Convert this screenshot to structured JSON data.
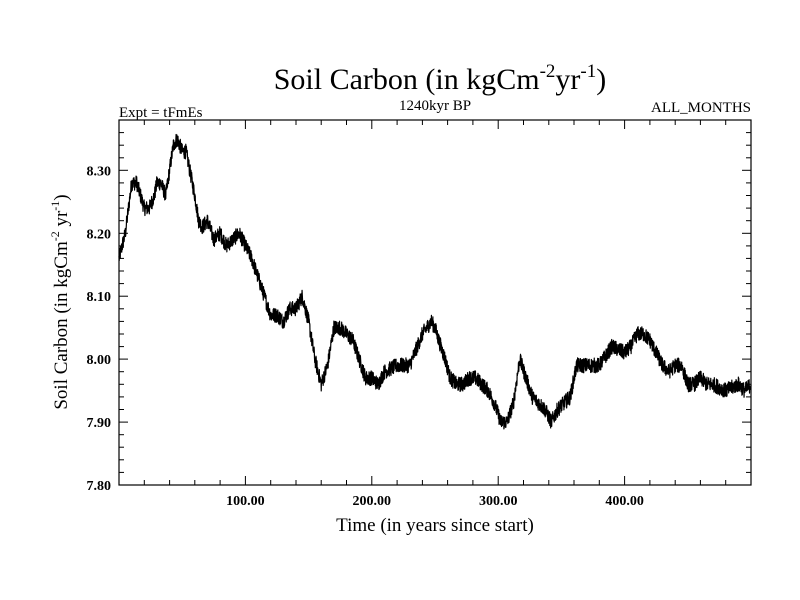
{
  "chart_data": {
    "type": "line",
    "title": "Soil Carbon (in kgCm",
    "title_sup1": "-2",
    "title_mid": "yr",
    "title_sup2": "-1",
    "title_end": ")",
    "left_label": "Expt = tFmEs",
    "center_label": "1240kyr BP",
    "right_label": "ALL_MONTHS",
    "xlabel": "Time (in years since start)",
    "ylabel": "Soil Carbon (in kgCm",
    "ylabel_sup1": "-2",
    "ylabel_mid": " yr",
    "ylabel_sup2": "-1",
    "ylabel_end": ")",
    "xlim": [
      0,
      500
    ],
    "ylim": [
      7.8,
      8.38
    ],
    "x_ticks": [
      100,
      200,
      300,
      400
    ],
    "x_tick_labels": [
      "100.00",
      "200.00",
      "300.00",
      "400.00"
    ],
    "y_ticks": [
      7.8,
      7.9,
      8.0,
      8.1,
      8.2,
      8.3
    ],
    "y_tick_labels": [
      "7.80",
      "7.90",
      "8.00",
      "8.10",
      "8.20",
      "8.30"
    ],
    "series": [
      {
        "name": "Soil Carbon",
        "color": "#000000",
        "noise_amplitude": 0.012,
        "x": [
          0,
          5,
          10,
          14,
          17,
          20,
          24,
          28,
          30,
          33,
          37,
          40,
          43,
          46,
          50,
          53,
          56,
          60,
          63,
          66,
          70,
          75,
          80,
          85,
          90,
          95,
          100,
          105,
          110,
          115,
          120,
          125,
          130,
          135,
          140,
          145,
          150,
          155,
          160,
          165,
          170,
          175,
          180,
          185,
          190,
          195,
          200,
          205,
          210,
          220,
          230,
          240,
          247,
          250,
          253,
          258,
          262,
          267,
          272,
          277,
          282,
          287,
          292,
          297,
          302,
          307,
          312,
          317,
          322,
          327,
          332,
          337,
          342,
          347,
          352,
          357,
          362,
          370,
          380,
          390,
          400,
          405,
          410,
          415,
          420,
          425,
          430,
          435,
          440,
          445,
          450,
          455,
          460,
          465,
          470,
          480,
          490,
          495,
          500
        ],
        "y": [
          8.16,
          8.2,
          8.28,
          8.28,
          8.26,
          8.24,
          8.24,
          8.26,
          8.28,
          8.28,
          8.26,
          8.3,
          8.34,
          8.35,
          8.33,
          8.33,
          8.3,
          8.26,
          8.22,
          8.21,
          8.22,
          8.19,
          8.2,
          8.18,
          8.19,
          8.2,
          8.18,
          8.16,
          8.13,
          8.1,
          8.07,
          8.07,
          8.06,
          8.08,
          8.08,
          8.1,
          8.06,
          8.0,
          7.96,
          7.99,
          8.05,
          8.05,
          8.04,
          8.03,
          8.0,
          7.97,
          7.97,
          7.96,
          7.98,
          7.99,
          7.99,
          8.04,
          8.06,
          8.05,
          8.03,
          8.0,
          7.97,
          7.96,
          7.96,
          7.97,
          7.97,
          7.96,
          7.95,
          7.93,
          7.9,
          7.9,
          7.93,
          8.0,
          7.97,
          7.94,
          7.93,
          7.92,
          7.9,
          7.92,
          7.93,
          7.94,
          7.99,
          7.99,
          7.99,
          8.02,
          8.01,
          8.02,
          8.04,
          8.04,
          8.03,
          8.01,
          7.99,
          7.98,
          7.99,
          7.99,
          7.96,
          7.96,
          7.97,
          7.96,
          7.96,
          7.95,
          7.96,
          7.95,
          7.96
        ]
      }
    ]
  }
}
